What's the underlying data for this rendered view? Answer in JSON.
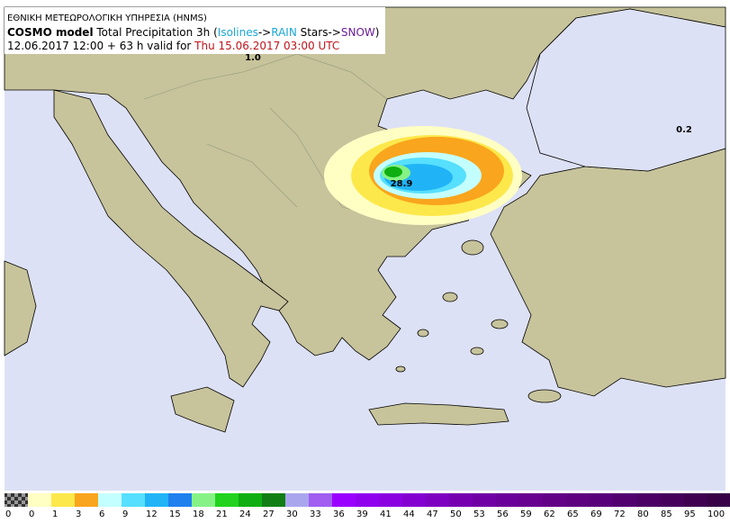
{
  "header": {
    "agency": "ΕΘΝΙΚΗ ΜΕΤΕΩΡΟΛΟΓΙΚΗ ΥΠΗΡΕΣΙΑ (HNMS)",
    "line2": [
      {
        "text": "COSMO model",
        "color": "#000000",
        "bold": true
      },
      {
        "text": " Total Precipitation 3h (",
        "color": "#000000",
        "bold": false
      },
      {
        "text": "Isolines",
        "color": "#1aa7d8",
        "bold": false
      },
      {
        "text": "->",
        "color": "#000000",
        "bold": false
      },
      {
        "text": "RAIN",
        "color": "#1aa7d8",
        "bold": false
      },
      {
        "text": " Stars->",
        "color": "#000000",
        "bold": false
      },
      {
        "text": "SNOW",
        "color": "#6a1b9a",
        "bold": false
      },
      {
        "text": ")",
        "color": "#000000",
        "bold": false
      }
    ],
    "line3": [
      {
        "text": "12.06.2017 12:00 + 63 h valid for ",
        "color": "#000000",
        "bold": false
      },
      {
        "text": "Thu 15.06.2017 03:00 UTC",
        "color": "#c0141b",
        "bold": false
      }
    ]
  },
  "map_labels": [
    {
      "text": "1.0"
    },
    {
      "text": "0.2"
    },
    {
      "text": "28.9"
    }
  ],
  "legend": {
    "labels": [
      "0",
      "0",
      "1",
      "3",
      "6",
      "9",
      "12",
      "15",
      "18",
      "21",
      "24",
      "27",
      "30",
      "33",
      "36",
      "39",
      "41",
      "44",
      "47",
      "50",
      "53",
      "56",
      "59",
      "62",
      "65",
      "69",
      "72",
      "80",
      "85",
      "95",
      "100"
    ],
    "colors": [
      "#ffffc4",
      "#fde84b",
      "#f9a51d",
      "#c4ffff",
      "#56dfff",
      "#20b4f6",
      "#1f80ee",
      "#86f286",
      "#22d21e",
      "#0fae12",
      "#0f7f14",
      "#aaa6ee",
      "#a05ff0",
      "#9a00ff",
      "#9000ee",
      "#8a00e0",
      "#8400d0",
      "#7e00c0",
      "#7600b0",
      "#7000a4",
      "#6c009a",
      "#680090",
      "#620086",
      "#5e0080",
      "#58007a",
      "#520070",
      "#4c0066",
      "#46005c",
      "#400052",
      "#380046"
    ]
  }
}
